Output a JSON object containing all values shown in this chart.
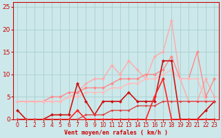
{
  "bg_color": "#cce8ea",
  "grid_color": "#aacece",
  "xlabel": "Vent moyen/en rafales ( km/h )",
  "xlim": [
    -0.5,
    23.5
  ],
  "ylim": [
    0,
    26
  ],
  "yticks": [
    0,
    5,
    10,
    15,
    20,
    25
  ],
  "xticks": [
    0,
    1,
    2,
    3,
    4,
    5,
    6,
    7,
    8,
    9,
    10,
    11,
    12,
    13,
    14,
    15,
    16,
    17,
    18,
    19,
    20,
    21,
    22,
    23
  ],
  "series": [
    {
      "x": [
        0,
        1,
        2,
        3,
        4,
        5,
        6,
        7,
        8,
        9,
        10,
        11,
        12,
        13,
        14,
        15,
        16,
        17,
        18,
        19,
        20,
        21,
        22,
        23
      ],
      "y": [
        4,
        4,
        4,
        4,
        4,
        4,
        5,
        6,
        8,
        9,
        9,
        12,
        10,
        13,
        11,
        9,
        14,
        15,
        22,
        9,
        4,
        4,
        9,
        5
      ],
      "color": "#ffaaaa",
      "lw": 1.0,
      "ms": 2.5
    },
    {
      "x": [
        0,
        1,
        2,
        3,
        4,
        5,
        6,
        7,
        8,
        9,
        10,
        11,
        12,
        13,
        14,
        15,
        16,
        17,
        18,
        19,
        20,
        21,
        22,
        23
      ],
      "y": [
        4,
        4,
        4,
        4,
        5,
        5,
        6,
        6,
        7,
        7,
        7,
        8,
        9,
        9,
        9,
        10,
        10,
        11,
        14,
        9,
        9,
        15,
        5,
        9
      ],
      "color": "#ff8888",
      "lw": 1.0,
      "ms": 2.5
    },
    {
      "x": [
        0,
        1,
        2,
        3,
        4,
        5,
        6,
        7,
        8,
        9,
        10,
        11,
        12,
        13,
        14,
        15,
        16,
        17,
        18,
        19,
        20,
        21,
        22,
        23
      ],
      "y": [
        4,
        4,
        4,
        4,
        4,
        4,
        5,
        5,
        6,
        6,
        6,
        7,
        7,
        8,
        8,
        9,
        9,
        10,
        11,
        9,
        9,
        9,
        4,
        4
      ],
      "color": "#ffbbbb",
      "lw": 1.0,
      "ms": 2.5
    },
    {
      "x": [
        0,
        1,
        2,
        3,
        4,
        5,
        6,
        7,
        8,
        9,
        10,
        11,
        12,
        13,
        14,
        15,
        16,
        17,
        18,
        19,
        20,
        21,
        22,
        23
      ],
      "y": [
        2,
        0,
        0,
        0,
        1,
        1,
        1,
        8,
        4,
        1,
        4,
        4,
        4,
        6,
        4,
        4,
        4,
        13,
        13,
        0,
        0,
        0,
        2,
        4
      ],
      "color": "#cc1111",
      "lw": 1.2,
      "ms": 2.5
    },
    {
      "x": [
        0,
        1,
        2,
        3,
        4,
        5,
        6,
        7,
        8,
        9,
        10,
        11,
        12,
        13,
        14,
        15,
        16,
        17,
        18,
        19,
        20,
        21,
        22,
        23
      ],
      "y": [
        0,
        0,
        0,
        0,
        0,
        0,
        0,
        2,
        0,
        0,
        0,
        0,
        0,
        0,
        0,
        0,
        5,
        9,
        0,
        0,
        0,
        0,
        0,
        0
      ],
      "color": "#ff2222",
      "lw": 1.2,
      "ms": 2.5
    },
    {
      "x": [
        0,
        1,
        2,
        3,
        4,
        5,
        6,
        7,
        8,
        9,
        10,
        11,
        12,
        13,
        14,
        15,
        16,
        17,
        18,
        19,
        20,
        21,
        22,
        23
      ],
      "y": [
        0,
        0,
        0,
        0,
        0,
        0,
        0,
        0,
        1,
        1,
        1,
        2,
        2,
        2,
        3,
        3,
        3,
        4,
        4,
        4,
        4,
        4,
        4,
        4
      ],
      "color": "#dd4444",
      "lw": 1.0,
      "ms": 2.0
    }
  ]
}
